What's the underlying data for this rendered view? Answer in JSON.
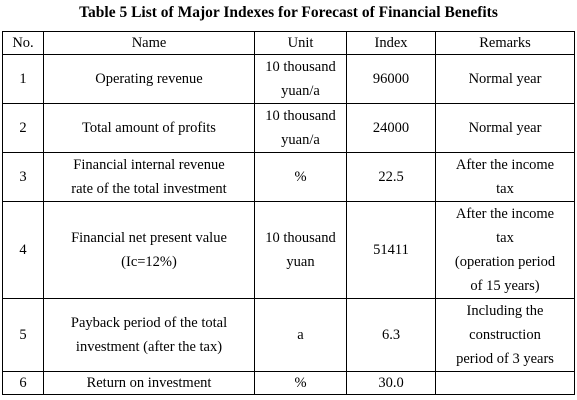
{
  "caption": "Table 5 List of Major Indexes for Forecast of Financial Benefits",
  "headers": {
    "no": "No.",
    "name": "Name",
    "unit": "Unit",
    "index": "Index",
    "remarks": "Remarks"
  },
  "rows": [
    {
      "no": "1",
      "name": [
        "Operating revenue"
      ],
      "unit": [
        "10 thousand",
        "yuan/a"
      ],
      "index": "96000",
      "remarks": [
        "Normal year"
      ]
    },
    {
      "no": "2",
      "name": [
        "Total amount of profits"
      ],
      "unit": [
        "10 thousand",
        "yuan/a"
      ],
      "index": "24000",
      "remarks": [
        "Normal year"
      ]
    },
    {
      "no": "3",
      "name": [
        "Financial internal revenue",
        "rate of the total investment"
      ],
      "unit": [
        "%"
      ],
      "index": "22.5",
      "remarks": [
        "After the income",
        "tax"
      ]
    },
    {
      "no": "4",
      "name": [
        "Financial net present value",
        "(Ic=12%)"
      ],
      "unit": [
        "10 thousand",
        "yuan"
      ],
      "index": "51411",
      "remarks": [
        "After the income",
        "tax",
        "(operation period",
        "of 15 years)"
      ]
    },
    {
      "no": "5",
      "name": [
        "Payback period of the total",
        "investment (after the tax)"
      ],
      "unit": [
        "a"
      ],
      "index": "6.3",
      "remarks": [
        "Including the",
        "construction",
        "period of 3 years"
      ]
    },
    {
      "no": "6",
      "name": [
        "Return on investment"
      ],
      "unit": [
        "%"
      ],
      "index": "30.0",
      "remarks": [
        ""
      ]
    }
  ]
}
